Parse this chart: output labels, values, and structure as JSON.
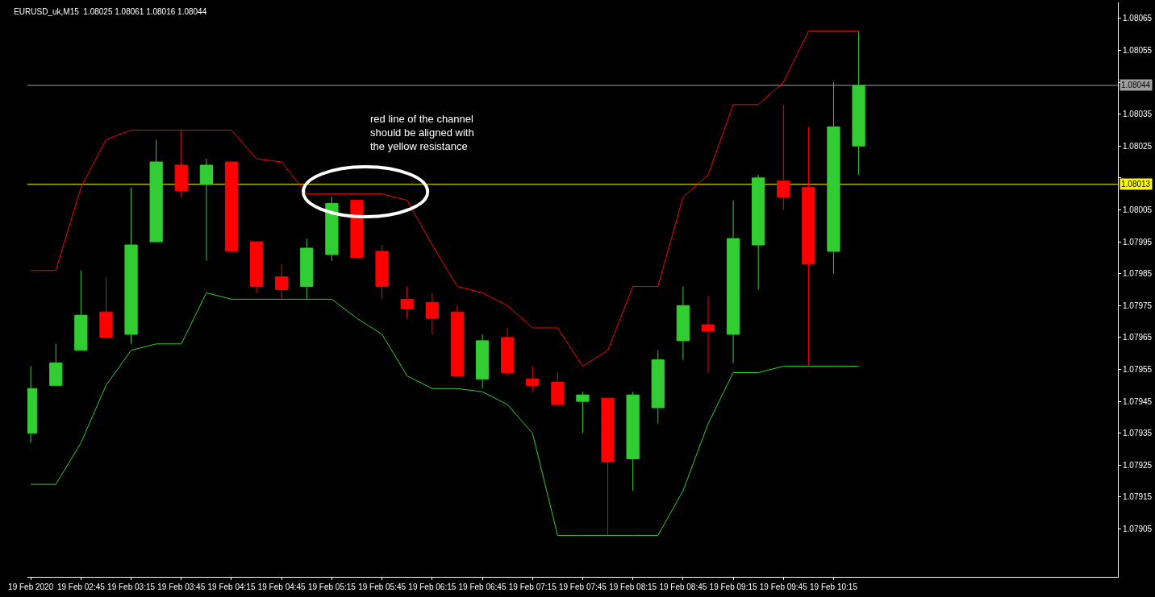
{
  "chart_data": {
    "type": "candlestick",
    "title": "EURUSD_uk,M15  1.08025 1.08061 1.08016 1.08044",
    "annotations": [
      "red line of the channel\nshould be aligned with\nthe yellow resistance"
    ],
    "x": [
      "2020-02-19T02:15",
      "2020-02-19T02:30",
      "2020-02-19T02:45",
      "2020-02-19T03:00",
      "2020-02-19T03:15",
      "2020-02-19T03:30",
      "2020-02-19T03:45",
      "2020-02-19T04:00",
      "2020-02-19T04:15",
      "2020-02-19T04:30",
      "2020-02-19T04:45",
      "2020-02-19T05:00",
      "2020-02-19T05:15",
      "2020-02-19T05:30",
      "2020-02-19T05:45",
      "2020-02-19T06:00",
      "2020-02-19T06:15",
      "2020-02-19T06:30",
      "2020-02-19T06:45",
      "2020-02-19T07:00",
      "2020-02-19T07:15",
      "2020-02-19T07:30",
      "2020-02-19T07:45",
      "2020-02-19T08:00",
      "2020-02-19T08:15",
      "2020-02-19T08:30",
      "2020-02-19T08:45",
      "2020-02-19T09:00",
      "2020-02-19T09:15",
      "2020-02-19T09:30",
      "2020-02-19T09:45",
      "2020-02-19T10:00",
      "2020-02-19T10:15",
      "2020-02-19T10:30"
    ],
    "series": [
      {
        "type": "line",
        "color": "#ff0000",
        "values": [
          1.07986,
          1.07986,
          1.08012,
          1.08027,
          1.0803,
          1.0803,
          1.0803,
          1.0803,
          1.0803,
          1.08021,
          1.0802,
          1.0801,
          1.0801,
          1.0801,
          1.0801,
          1.08008,
          1.07994,
          1.07981,
          1.07979,
          1.07975,
          1.07968,
          1.07968,
          1.07956,
          1.07961,
          1.07981,
          1.07981,
          1.08009,
          1.08016,
          1.08038,
          1.08038,
          1.08045,
          1.08061,
          1.08061,
          1.08061
        ]
      },
      {
        "type": "line",
        "color": "#32cd32",
        "values": [
          1.07919,
          1.07919,
          1.07932,
          1.0795,
          1.07961,
          1.07963,
          1.07963,
          1.07979,
          1.07977,
          1.07977,
          1.07977,
          1.07977,
          1.07977,
          1.07971,
          1.07966,
          1.07953,
          1.07949,
          1.07949,
          1.07948,
          1.07944,
          1.07935,
          1.07903,
          1.07903,
          1.07903,
          1.07903,
          1.07903,
          1.07917,
          1.07938,
          1.07954,
          1.07954,
          1.07956,
          1.07956,
          1.07956,
          1.07956
        ]
      },
      {
        "ohlc": [
          [
            1.07935,
            1.07956,
            1.07932,
            1.07949
          ],
          [
            1.0795,
            1.07963,
            1.0795,
            1.07957
          ],
          [
            1.07961,
            1.07986,
            1.07961,
            1.07972
          ],
          [
            1.07973,
            1.07984,
            1.07965,
            1.07965
          ],
          [
            1.07966,
            1.08012,
            1.07963,
            1.07994
          ],
          [
            1.07995,
            1.08027,
            1.07995,
            1.0802
          ],
          [
            1.08019,
            1.0803,
            1.08009,
            1.08011
          ],
          [
            1.08013,
            1.08021,
            1.07989,
            1.08019
          ],
          [
            1.0802,
            1.0802,
            1.07992,
            1.07992
          ],
          [
            1.07995,
            1.07995,
            1.07979,
            1.07981
          ],
          [
            1.07984,
            1.07988,
            1.07977,
            1.0798
          ],
          [
            1.07981,
            1.07996,
            1.07977,
            1.07993
          ],
          [
            1.07991,
            1.08009,
            1.07989,
            1.08007
          ],
          [
            1.08008,
            1.08008,
            1.0799,
            1.0799
          ],
          [
            1.07992,
            1.07994,
            1.07977,
            1.07981
          ],
          [
            1.07977,
            1.07981,
            1.07971,
            1.07974
          ],
          [
            1.07976,
            1.07979,
            1.07966,
            1.07971
          ],
          [
            1.07973,
            1.07975,
            1.07953,
            1.07953
          ],
          [
            1.07952,
            1.07966,
            1.07949,
            1.07964
          ],
          [
            1.07965,
            1.07968,
            1.07953,
            1.07954
          ],
          [
            1.07952,
            1.07956,
            1.07948,
            1.0795
          ],
          [
            1.07951,
            1.07954,
            1.07944,
            1.07944
          ],
          [
            1.07945,
            1.07948,
            1.07935,
            1.07947
          ],
          [
            1.07946,
            1.07946,
            1.07903,
            1.07926
          ],
          [
            1.07927,
            1.07948,
            1.07917,
            1.07947
          ],
          [
            1.07943,
            1.07961,
            1.07938,
            1.07958
          ],
          [
            1.07964,
            1.07981,
            1.07958,
            1.07975
          ],
          [
            1.07969,
            1.07978,
            1.07954,
            1.07967
          ],
          [
            1.07966,
            1.08008,
            1.07957,
            1.07996
          ],
          [
            1.07994,
            1.08016,
            1.0798,
            1.08015
          ],
          [
            1.08014,
            1.08038,
            1.08005,
            1.08009
          ],
          [
            1.08012,
            1.08031,
            1.07956,
            1.07988
          ],
          [
            1.07992,
            1.08045,
            1.07985,
            1.08031
          ],
          [
            1.08025,
            1.08061,
            1.08016,
            1.08044
          ]
        ],
        "colors": [
          "#32cd32",
          "#32cd32",
          "#32cd32",
          "#ff0000",
          "#32cd32",
          "#32cd32",
          "#ff0000",
          "#32cd32",
          "#ff0000",
          "#ff0000",
          "#ff0000",
          "#32cd32",
          "#32cd32",
          "#ff0000",
          "#ff0000",
          "#ff0000",
          "#ff0000",
          "#ff0000",
          "#32cd32",
          "#ff0000",
          "#ff0000",
          "#ff0000",
          "#32cd32",
          "#ff0000",
          "#32cd32",
          "#32cd32",
          "#32cd32",
          "#ff0000",
          "#32cd32",
          "#32cd32",
          "#ff0000",
          "#ff0000",
          "#32cd32",
          "#32cd32"
        ]
      }
    ],
    "xlim": [
      "2020-02-19T02:13",
      "2020-02-19T13:05"
    ],
    "xticks": [
      {
        "value": "2020-02-19T02:15",
        "label": "19 Feb 2020"
      },
      {
        "value": "2020-02-19T02:45",
        "label": "19 Feb 02:45"
      },
      {
        "value": "2020-02-19T03:15",
        "label": "19 Feb 03:15"
      },
      {
        "value": "2020-02-19T03:45",
        "label": "19 Feb 03:45"
      },
      {
        "value": "2020-02-19T04:15",
        "label": "19 Feb 04:15"
      },
      {
        "value": "2020-02-19T04:45",
        "label": "19 Feb 04:45"
      },
      {
        "value": "2020-02-19T05:15",
        "label": "19 Feb 05:15"
      },
      {
        "value": "2020-02-19T05:45",
        "label": "19 Feb 05:45"
      },
      {
        "value": "2020-02-19T06:15",
        "label": "19 Feb 06:15"
      },
      {
        "value": "2020-02-19T06:45",
        "label": "19 Feb 06:45"
      },
      {
        "value": "2020-02-19T07:15",
        "label": "19 Feb 07:15"
      },
      {
        "value": "2020-02-19T07:45",
        "label": "19 Feb 07:45"
      },
      {
        "value": "2020-02-19T08:15",
        "label": "19 Feb 08:15"
      },
      {
        "value": "2020-02-19T08:45",
        "label": "19 Feb 08:45"
      },
      {
        "value": "2020-02-19T09:15",
        "label": "19 Feb 09:15"
      },
      {
        "value": "2020-02-19T09:45",
        "label": "19 Feb 09:45"
      },
      {
        "value": "2020-02-19T10:15",
        "label": "19 Feb 10:15"
      }
    ],
    "ylim": [
      1.0789,
      1.0807
    ],
    "yticks": [
      1.07905,
      1.07915,
      1.07925,
      1.07935,
      1.07945,
      1.07955,
      1.07965,
      1.07975,
      1.07985,
      1.07995,
      1.08005,
      {
        "value": 1.08015,
        "label": null
      },
      1.08025,
      1.08035,
      {
        "value": 1.08045,
        "label": null
      },
      1.08055,
      1.08065
    ],
    "ref_lines": [
      {
        "axis": "y",
        "value": 1.08044,
        "label": "1.08044",
        "color": "#a0a0a0"
      },
      {
        "axis": "y",
        "value": 1.08013,
        "label": "1.08013",
        "color": "#ffff00"
      }
    ],
    "grid": false
  }
}
